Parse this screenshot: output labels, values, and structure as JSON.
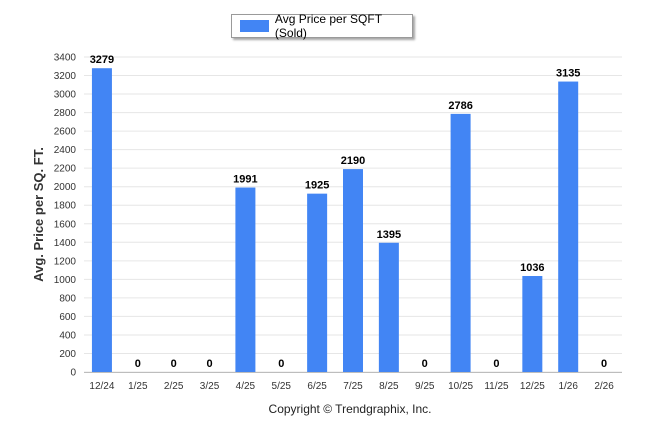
{
  "chart_data": {
    "type": "bar",
    "title": "",
    "xlabel": "",
    "ylabel": "Avg. Price per SQ. FT.",
    "categories": [
      "12/24",
      "1/25",
      "2/25",
      "3/25",
      "4/25",
      "5/25",
      "6/25",
      "7/25",
      "8/25",
      "9/25",
      "10/25",
      "11/25",
      "12/25",
      "1/26",
      "2/26"
    ],
    "series": [
      {
        "name": "Avg Price per SQFT (Sold)",
        "color": "#4285f4",
        "values": [
          3279,
          0,
          0,
          0,
          1991,
          0,
          1925,
          2190,
          1395,
          0,
          2786,
          0,
          1036,
          3135,
          0
        ]
      }
    ],
    "ylim": [
      0,
      3400
    ],
    "yticks": [
      0,
      200,
      400,
      600,
      800,
      1000,
      1200,
      1400,
      1600,
      1800,
      2000,
      2200,
      2400,
      2600,
      2800,
      3000,
      3200,
      3400
    ],
    "grid": true,
    "data_labels": true,
    "legend_position": "top-center"
  },
  "footer": {
    "copyright": "Copyright © Trendgraphix, Inc."
  }
}
